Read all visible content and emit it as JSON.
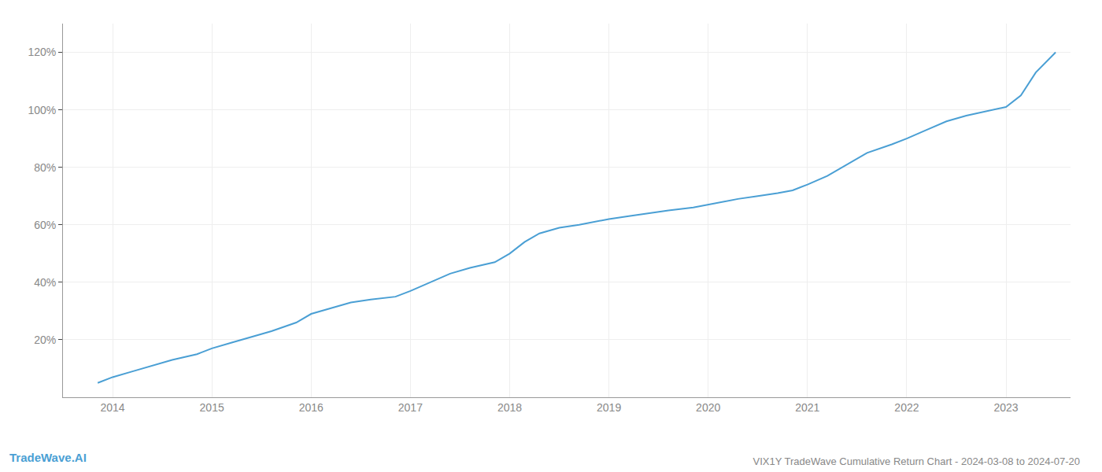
{
  "chart_data": {
    "type": "line",
    "title": "VIX1Y TradeWave Cumulative Return Chart - 2024-03-08 to 2024-07-20",
    "annotations": [
      "TradeWave.AI"
    ],
    "x": [
      2013.85,
      2014.0,
      2014.2,
      2014.4,
      2014.6,
      2014.85,
      2015.0,
      2015.2,
      2015.4,
      2015.6,
      2015.85,
      2016.0,
      2016.2,
      2016.4,
      2016.6,
      2016.85,
      2017.0,
      2017.2,
      2017.4,
      2017.6,
      2017.85,
      2018.0,
      2018.15,
      2018.3,
      2018.5,
      2018.7,
      2018.85,
      2019.0,
      2019.2,
      2019.4,
      2019.6,
      2019.85,
      2020.0,
      2020.15,
      2020.3,
      2020.5,
      2020.7,
      2020.85,
      2021.0,
      2021.2,
      2021.4,
      2021.6,
      2021.85,
      2022.0,
      2022.2,
      2022.4,
      2022.6,
      2022.85,
      2023.0,
      2023.15,
      2023.3,
      2023.5
    ],
    "values": [
      5,
      7,
      9,
      11,
      13,
      15,
      17,
      19,
      21,
      23,
      26,
      29,
      31,
      33,
      34,
      35,
      37,
      40,
      43,
      45,
      47,
      50,
      54,
      57,
      59,
      60,
      61,
      62,
      63,
      64,
      65,
      66,
      67,
      68,
      69,
      70,
      71,
      72,
      74,
      77,
      81,
      85,
      88,
      90,
      93,
      96,
      98,
      100,
      101,
      105,
      113,
      120
    ],
    "color": "#4a9fd4",
    "xlim": [
      2013.5,
      2023.65
    ],
    "xticks": [
      2014,
      2015,
      2016,
      2017,
      2018,
      2019,
      2020,
      2021,
      2022,
      2023
    ],
    "ylim": [
      0,
      130
    ],
    "yticks": [
      {
        "value": 20,
        "label": "20%"
      },
      {
        "value": 40,
        "label": "40%"
      },
      {
        "value": 60,
        "label": "60%"
      },
      {
        "value": 80,
        "label": "80%"
      },
      {
        "value": 100,
        "label": "100%"
      },
      {
        "value": 120,
        "label": "120%"
      }
    ],
    "grid": true
  }
}
